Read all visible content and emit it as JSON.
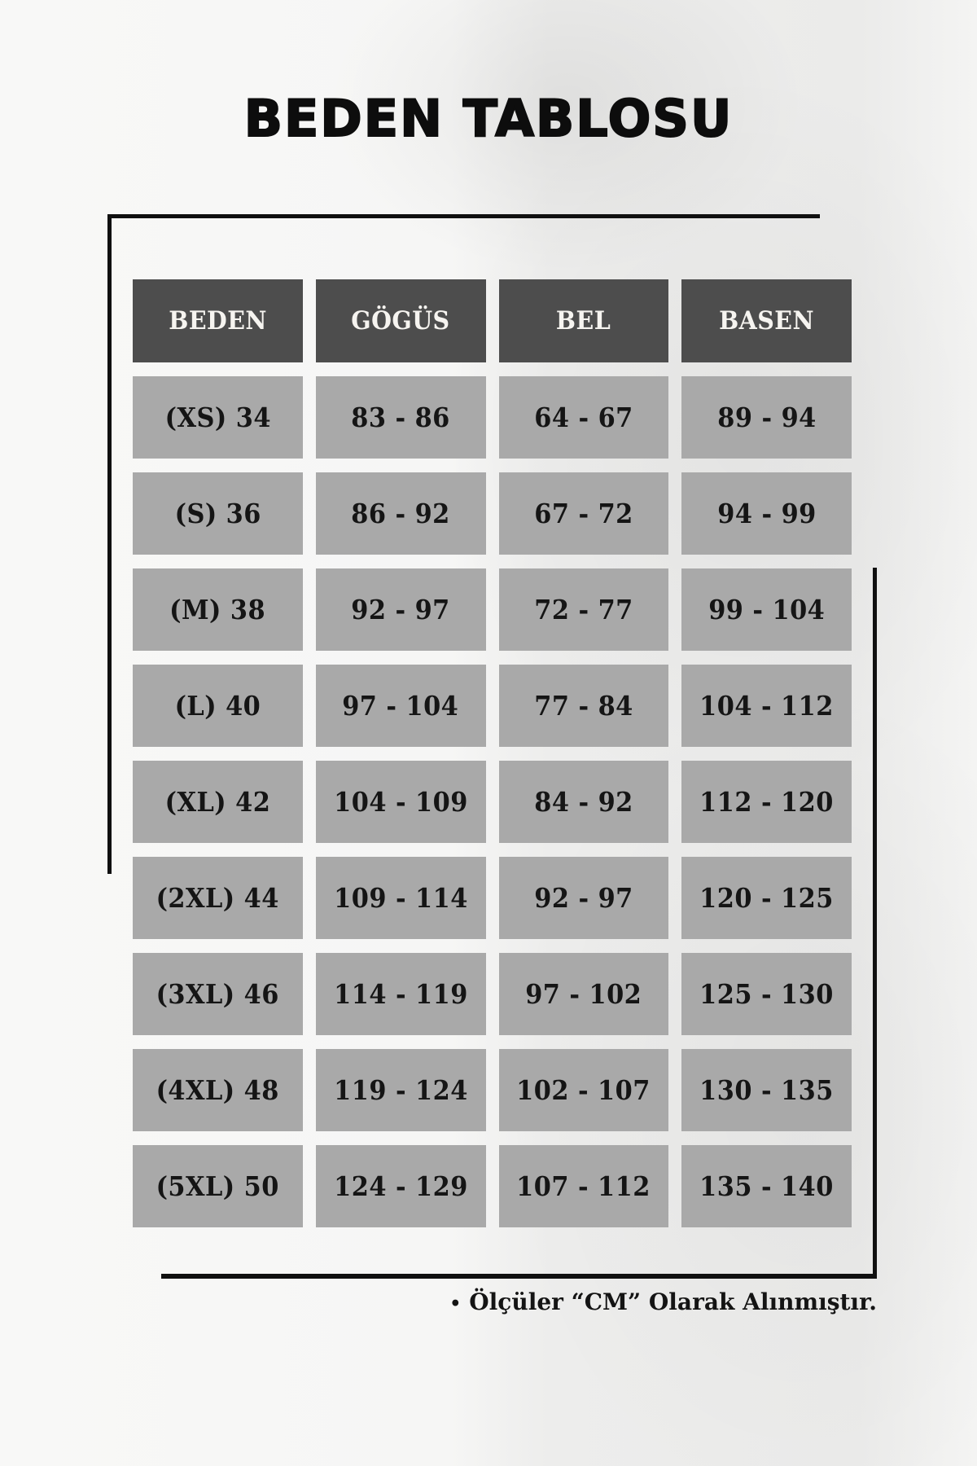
{
  "page": {
    "title": "BEDEN TABLOSU",
    "footer": {
      "bullet": "•",
      "note": "Ölçüler “CM” Olarak Alınmıştır."
    }
  },
  "colors": {
    "page_background_left": "#f7f7f6",
    "page_background_right": "#ebebea",
    "header_cell_bg": "#4d4d4d",
    "header_cell_text": "#f6f4f0",
    "data_cell_bg": "#a9a9a9",
    "data_cell_text": "#151515",
    "frame_line": "#101010",
    "title_text": "#0d0d0d"
  },
  "chart_data": {
    "type": "table",
    "title": "BEDEN TABLOSU",
    "units": "cm",
    "note": "Ölçüler “CM” Olarak Alınmıştır.",
    "columns": [
      "BEDEN",
      "GÖGÜS",
      "BEL",
      "BASEN"
    ],
    "rows": [
      [
        "(XS) 34",
        "83 - 86",
        "64 - 67",
        "89 - 94"
      ],
      [
        "(S) 36",
        "86 - 92",
        "67 - 72",
        "94 - 99"
      ],
      [
        "(M) 38",
        "92 - 97",
        "72 - 77",
        "99 - 104"
      ],
      [
        "(L) 40",
        "97 - 104",
        "77 - 84",
        "104 - 112"
      ],
      [
        "(XL) 42",
        "104 - 109",
        "84 - 92",
        "112 - 120"
      ],
      [
        "(2XL) 44",
        "109 - 114",
        "92 - 97",
        "120 - 125"
      ],
      [
        "(3XL) 46",
        "114 - 119",
        "97 - 102",
        "125 - 130"
      ],
      [
        "(4XL) 48",
        "119 - 124",
        "102 - 107",
        "130 - 135"
      ],
      [
        "(5XL) 50",
        "124 - 129",
        "107 - 112",
        "135 - 140"
      ]
    ]
  }
}
